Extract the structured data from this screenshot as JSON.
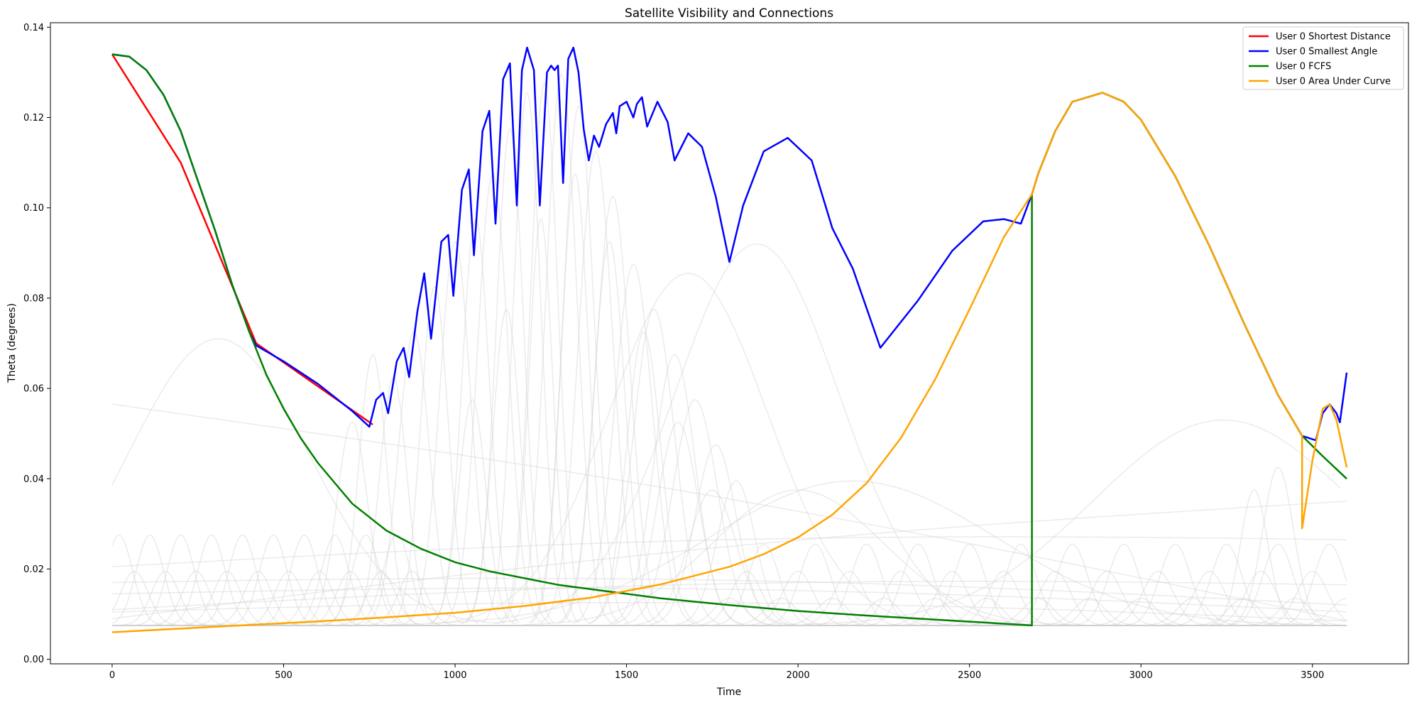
{
  "chart_data": {
    "type": "line",
    "title": "Satellite Visibility and Connections",
    "xlabel": "Time",
    "ylabel": "Theta (degrees)",
    "xlim": [
      -180,
      3780
    ],
    "ylim": [
      -0.001,
      0.141
    ],
    "x_ticks": [
      0,
      500,
      1000,
      1500,
      2000,
      2500,
      3000,
      3500
    ],
    "y_ticks": [
      0.0,
      0.02,
      0.04,
      0.06,
      0.08,
      0.1,
      0.12,
      0.14
    ],
    "y_tick_labels": [
      "0.00",
      "0.02",
      "0.04",
      "0.06",
      "0.08",
      "0.10",
      "0.12",
      "0.14"
    ],
    "legend_position": "top-right",
    "grid": false,
    "series": [
      {
        "name": "User 0 Shortest Distance",
        "color": "#ff0000",
        "x": [
          0,
          200,
          420,
          760
        ],
        "y": [
          0.134,
          0.11,
          0.07,
          0.052
        ]
      },
      {
        "name": "User 0 Smallest Angle",
        "color": "#0000ff",
        "x": [
          0,
          50,
          100,
          150,
          200,
          250,
          300,
          350,
          400,
          420,
          500,
          600,
          700,
          750,
          770,
          790,
          805,
          830,
          850,
          866,
          890,
          910,
          930,
          960,
          980,
          995,
          1020,
          1040,
          1055,
          1080,
          1100,
          1118,
          1140,
          1160,
          1180,
          1195,
          1210,
          1230,
          1247,
          1268,
          1280,
          1290,
          1300,
          1315,
          1330,
          1345,
          1360,
          1375,
          1390,
          1405,
          1420,
          1440,
          1460,
          1470,
          1480,
          1500,
          1520,
          1530,
          1545,
          1560,
          1590,
          1620,
          1640,
          1680,
          1720,
          1760,
          1800,
          1840,
          1900,
          1970,
          2040,
          2100,
          2160,
          2240,
          2350,
          2450,
          2540,
          2600,
          2650,
          2682,
          2700,
          2750,
          2800,
          2888,
          2950,
          3000,
          3100,
          3200,
          3300,
          3400,
          3470,
          3510,
          3530,
          3550,
          3570,
          3580,
          3600
        ],
        "y": [
          0.134,
          0.1335,
          0.1305,
          0.125,
          0.117,
          0.106,
          0.095,
          0.083,
          0.0725,
          0.0695,
          0.066,
          0.061,
          0.055,
          0.0515,
          0.0575,
          0.059,
          0.0545,
          0.066,
          0.069,
          0.0625,
          0.077,
          0.0855,
          0.071,
          0.0925,
          0.094,
          0.0805,
          0.104,
          0.1085,
          0.0895,
          0.117,
          0.1215,
          0.0965,
          0.1285,
          0.132,
          0.1005,
          0.1305,
          0.1355,
          0.1305,
          0.1005,
          0.13,
          0.1315,
          0.1305,
          0.1315,
          0.1055,
          0.133,
          0.1355,
          0.13,
          0.1175,
          0.1105,
          0.116,
          0.1135,
          0.1185,
          0.121,
          0.1165,
          0.1225,
          0.1235,
          0.12,
          0.123,
          0.1245,
          0.118,
          0.1235,
          0.119,
          0.1105,
          0.1165,
          0.1135,
          0.1025,
          0.088,
          0.1005,
          0.1125,
          0.1155,
          0.1105,
          0.0955,
          0.0865,
          0.069,
          0.0795,
          0.0905,
          0.097,
          0.0975,
          0.0965,
          0.103,
          0.1075,
          0.117,
          0.1235,
          0.1255,
          0.1235,
          0.1195,
          0.107,
          0.0915,
          0.0745,
          0.0585,
          0.0495,
          0.0485,
          0.0545,
          0.0565,
          0.0545,
          0.0525,
          0.0635
        ]
      },
      {
        "name": "User 0 FCFS",
        "color": "#008000",
        "x": [
          0,
          50,
          100,
          150,
          200,
          250,
          300,
          350,
          400,
          450,
          500,
          550,
          600,
          700,
          800,
          900,
          1000,
          1100,
          1200,
          1300,
          1400,
          1500,
          1600,
          1800,
          2000,
          2200,
          2400,
          2682,
          2682,
          2700,
          2750,
          2800,
          2888,
          2950,
          3000,
          3100,
          3200,
          3300,
          3400,
          3470,
          3530,
          3600
        ],
        "y": [
          0.134,
          0.1335,
          0.1305,
          0.125,
          0.117,
          0.106,
          0.095,
          0.083,
          0.0725,
          0.063,
          0.0555,
          0.049,
          0.0435,
          0.0345,
          0.0285,
          0.0245,
          0.0215,
          0.0195,
          0.018,
          0.0165,
          0.0155,
          0.0145,
          0.0135,
          0.012,
          0.0107,
          0.0097,
          0.0088,
          0.0075,
          0.103,
          0.1075,
          0.117,
          0.1235,
          0.1255,
          0.1235,
          0.1195,
          0.107,
          0.0915,
          0.0745,
          0.0585,
          0.0495,
          0.045,
          0.04
        ]
      },
      {
        "name": "User 0 Area Under Curve",
        "color": "#ffa500",
        "x": [
          0,
          200,
          400,
          600,
          800,
          1000,
          1200,
          1400,
          1600,
          1800,
          1900,
          2000,
          2100,
          2200,
          2300,
          2400,
          2500,
          2600,
          2682,
          2700,
          2750,
          2800,
          2888,
          2950,
          3000,
          3100,
          3200,
          3300,
          3400,
          3470,
          3470,
          3500,
          3530,
          3550,
          3570,
          3600
        ],
        "y": [
          0.006,
          0.0068,
          0.0076,
          0.0084,
          0.0093,
          0.0103,
          0.0118,
          0.0137,
          0.0166,
          0.0205,
          0.0233,
          0.027,
          0.032,
          0.039,
          0.049,
          0.062,
          0.0775,
          0.0935,
          0.103,
          0.1075,
          0.117,
          0.1235,
          0.1255,
          0.1235,
          0.1195,
          0.107,
          0.0915,
          0.0745,
          0.0585,
          0.0495,
          0.029,
          0.044,
          0.0555,
          0.0565,
          0.053,
          0.0425
        ]
      }
    ]
  }
}
